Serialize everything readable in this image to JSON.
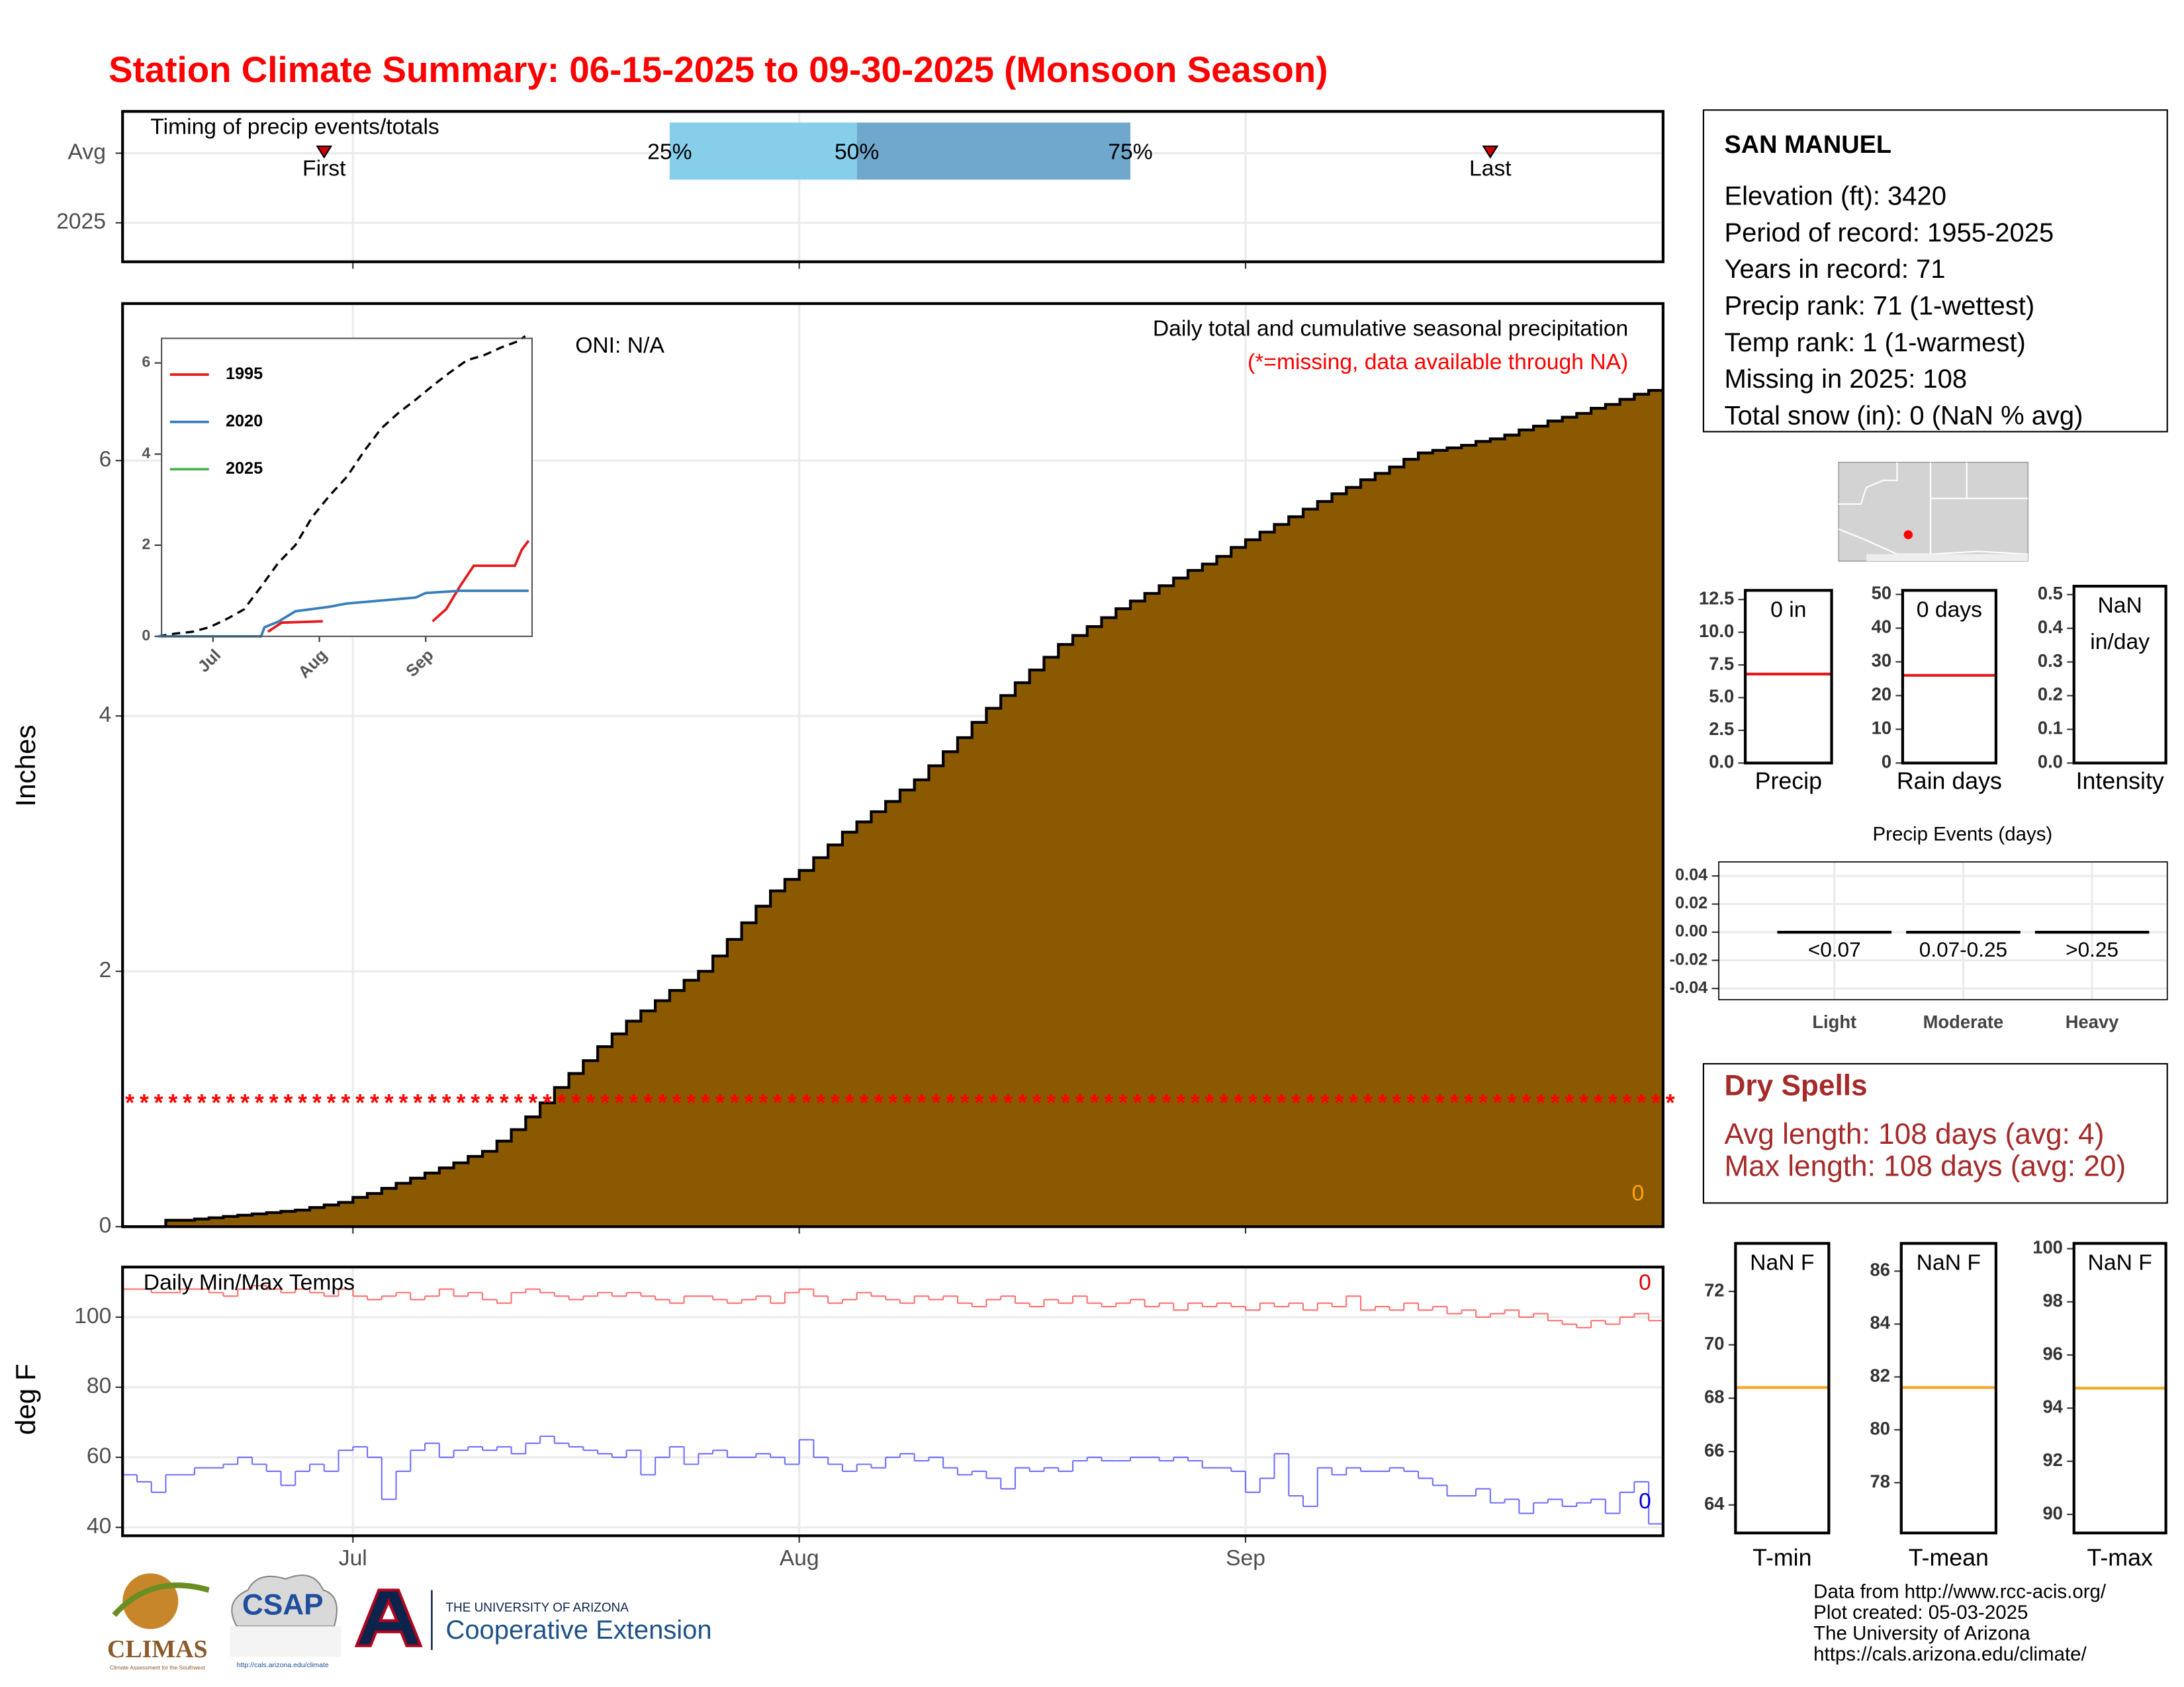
{
  "title": "Station Climate Summary: 06-15-2025 to 09-30-2025 (Monsoon Season)",
  "station": {
    "name": "SAN MANUEL",
    "lines": [
      "Elevation (ft): 3420",
      "Period of record: 1955-2025",
      "Years in record: 71",
      "Precip rank: 71 (1-wettest)",
      "Temp rank: 1 (1-warmest)",
      "Missing in 2025: 108",
      "Total snow (in): 0 (NaN % avg)"
    ]
  },
  "dry_spells": {
    "title": "Dry Spells",
    "lines": [
      "Avg length: 108 days (avg: 4)",
      "Max length: 108 days (avg: 20)"
    ]
  },
  "footer": [
    "Data from http://www.rcc-acis.org/",
    "Plot created: 05-03-2025",
    "The University of Arizona",
    "https://cals.arizona.edu/climate/"
  ],
  "logos": {
    "climas": "CLIMAS",
    "climas_sub": "Climate Assessment for the Southwest",
    "csap": "CSAP",
    "csap_url": "http://cals.arizona.edu/climate",
    "ua": "THE UNIVERSITY OF ARIZONA",
    "extension": "Cooperative Extension"
  },
  "chart_data": [
    {
      "type": "timing",
      "title": "Timing of precip events/totals",
      "categories": [
        "Avg",
        "2025"
      ],
      "quantiles": [
        {
          "label": "25%",
          "x": 38
        },
        {
          "label": "50%",
          "x": 51
        },
        {
          "label": "75%",
          "x": 70
        }
      ],
      "bar_colors": [
        "#87ceeb",
        "#6fa8cc"
      ],
      "markers": [
        {
          "label": "First",
          "x": 14
        },
        {
          "label": "Last",
          "x": 95
        }
      ],
      "marker_color": "#cc0000"
    },
    {
      "type": "step",
      "subtitle": "Daily total and cumulative seasonal precipitation",
      "note": "(*=missing, data available through NA)",
      "oni_label": "ONI: N/A",
      "total_label": "0",
      "ylabel": "Inches",
      "color": "#8b5a00",
      "missing_marker": "*",
      "missing_marker_y": 1,
      "missing_color": "#ff0000",
      "values": [
        0,
        0,
        0,
        0.05,
        0.05,
        0.06,
        0.07,
        0.08,
        0.09,
        0.1,
        0.11,
        0.12,
        0.13,
        0.15,
        0.17,
        0.19,
        0.23,
        0.26,
        0.3,
        0.34,
        0.38,
        0.42,
        0.46,
        0.5,
        0.55,
        0.59,
        0.67,
        0.76,
        0.86,
        0.97,
        1.09,
        1.2,
        1.3,
        1.41,
        1.51,
        1.61,
        1.69,
        1.77,
        1.85,
        1.93,
        2.0,
        2.12,
        2.25,
        2.38,
        2.51,
        2.63,
        2.72,
        2.79,
        2.89,
        2.99,
        3.09,
        3.17,
        3.25,
        3.33,
        3.42,
        3.5,
        3.61,
        3.72,
        3.83,
        3.95,
        4.06,
        4.16,
        4.26,
        4.36,
        4.46,
        4.56,
        4.63,
        4.7,
        4.77,
        4.84,
        4.9,
        4.96,
        5.02,
        5.08,
        5.14,
        5.19,
        5.25,
        5.32,
        5.38,
        5.44,
        5.5,
        5.56,
        5.62,
        5.68,
        5.74,
        5.79,
        5.85,
        5.9,
        5.95,
        6.01,
        6.06,
        6.08,
        6.1,
        6.12,
        6.15,
        6.17,
        6.2,
        6.24,
        6.27,
        6.31,
        6.34,
        6.37,
        6.41,
        6.44,
        6.48,
        6.52,
        6.55,
        6.59
      ],
      "ylim": [
        0,
        7.23
      ],
      "yticks": [
        0,
        2,
        4,
        6
      ],
      "grid": true
    },
    {
      "type": "line",
      "xlim": [
        1,
        109
      ],
      "xticks": [
        {
          "value": 16,
          "label": "Jul"
        },
        {
          "value": 47,
          "label": "Aug"
        },
        {
          "value": 78,
          "label": "Sep"
        }
      ],
      "ylim": [
        0,
        6.54
      ],
      "yticks": [
        0,
        2,
        4,
        6
      ],
      "series": [
        {
          "color": "#000000",
          "dash": true,
          "x": [
            0,
            5,
            10,
            15,
            20,
            25,
            30,
            35,
            40,
            45,
            50,
            55,
            60,
            65,
            70,
            75,
            80,
            85,
            90,
            95,
            100,
            105,
            107
          ],
          "values": [
            0,
            0.06,
            0.1,
            0.2,
            0.38,
            0.59,
            1.09,
            1.61,
            2.0,
            2.63,
            3.09,
            3.5,
            4.06,
            4.56,
            4.9,
            5.19,
            5.5,
            5.79,
            6.06,
            6.17,
            6.34,
            6.48,
            6.59
          ]
        },
        {
          "name": "1995",
          "color": "#e41a1c",
          "x": [
            32,
            36,
            48,
            60,
            80,
            84,
            88,
            92,
            104,
            106,
            108
          ],
          "values": [
            0.1,
            0.3,
            0.33,
            null,
            0.33,
            0.6,
            1.1,
            1.55,
            1.55,
            1.9,
            2.1
          ]
        },
        {
          "name": "2020",
          "color": "#377eb8",
          "x": [
            0,
            30,
            31,
            35,
            40,
            50,
            55,
            75,
            78,
            88,
            108
          ],
          "values": [
            0,
            0,
            0.2,
            0.32,
            0.55,
            0.65,
            0.72,
            0.85,
            0.95,
            1.0,
            1.0
          ]
        },
        {
          "name": "2025",
          "color": "#4daf4a",
          "x": [],
          "values": []
        }
      ]
    },
    {
      "type": "step-line",
      "title": "Daily Min/Max Temps",
      "ylabel": "deg F",
      "xlim": [
        0,
        107
      ],
      "xticks": [
        {
          "value": 16,
          "label": "Jul"
        },
        {
          "value": 47,
          "label": "Aug"
        },
        {
          "value": 78,
          "label": "Sep"
        }
      ],
      "ylim": [
        37.6,
        114.3
      ],
      "yticks": [
        40,
        60,
        80,
        100
      ],
      "grid": true,
      "series": [
        {
          "color": "#ff7070",
          "end_label": "0",
          "label_color": "#e00000",
          "values": [
            108,
            108,
            107,
            107,
            108,
            108,
            107,
            106,
            108,
            109,
            108,
            107,
            108,
            107,
            106,
            108,
            106,
            105,
            106,
            107,
            105,
            106,
            108,
            106,
            107,
            105,
            104,
            107,
            108,
            107,
            106,
            105,
            106,
            107,
            106,
            107,
            106,
            105,
            104,
            106,
            106,
            105,
            104,
            105,
            106,
            104,
            107,
            108,
            106,
            104,
            105,
            107,
            106,
            105,
            104,
            106,
            105,
            106,
            104,
            103,
            105,
            106,
            104,
            103,
            105,
            104,
            106,
            104,
            103,
            104,
            105,
            103,
            104,
            102,
            104,
            103,
            104,
            103,
            102,
            104,
            103,
            104,
            102,
            104,
            103,
            106,
            102,
            103,
            102,
            104,
            102,
            103,
            101,
            102,
            100,
            101,
            102,
            100,
            101,
            99,
            98,
            97,
            99,
            98,
            100,
            101,
            99,
            97
          ]
        },
        {
          "color": "#7070ff",
          "end_label": "0",
          "label_color": "#0000dd",
          "values": [
            55,
            53,
            50,
            55,
            55,
            57,
            57,
            58,
            60,
            58,
            56,
            52,
            56,
            58,
            56,
            62,
            63,
            60,
            48,
            56,
            62,
            64,
            60,
            62,
            63,
            62,
            63,
            61,
            64,
            66,
            64,
            63,
            62,
            61,
            60,
            62,
            55,
            60,
            63,
            58,
            61,
            62,
            60,
            60,
            61,
            60,
            58,
            65,
            60,
            58,
            56,
            58,
            57,
            60,
            61,
            59,
            60,
            57,
            55,
            56,
            54,
            51,
            57,
            56,
            57,
            56,
            59,
            60,
            59,
            59,
            60,
            60,
            59,
            60,
            59,
            57,
            57,
            56,
            50,
            54,
            61,
            49,
            46,
            57,
            55,
            57,
            56,
            56,
            57,
            56,
            54,
            52,
            49,
            49,
            51,
            47,
            48,
            44,
            47,
            48,
            46,
            47,
            48,
            44,
            50,
            53,
            41,
            43
          ]
        }
      ]
    },
    {
      "type": "stat-bar",
      "xlabel": "Precip",
      "values": [
        0
      ],
      "value_labels": [
        "0 in"
      ],
      "average": 6.8,
      "average_color": "#e41a1c",
      "ylim": [
        0,
        13.2
      ],
      "yticks": [
        {
          "value": 0,
          "label": "0.0"
        },
        2.5,
        {
          "value": 5,
          "label": "5.0"
        },
        7.5,
        {
          "value": 10,
          "label": "10.0"
        },
        12.5
      ]
    },
    {
      "type": "stat-bar",
      "xlabel": "Rain days",
      "values": [
        0
      ],
      "value_labels": [
        "0 days"
      ],
      "average": 26,
      "average_color": "#e41a1c",
      "ylim": [
        0,
        51.2
      ],
      "yticks": [
        0,
        10,
        20,
        30,
        40,
        50
      ]
    },
    {
      "type": "stat-bar",
      "xlabel": "Intensity",
      "values": [
        null
      ],
      "value_labels": [
        "NaN in/day"
      ],
      "ylim": [
        0,
        0.525
      ],
      "yticks": [
        {
          "value": 0,
          "label": "0.0"
        },
        0.1,
        0.2,
        0.3,
        0.4,
        0.5
      ]
    },
    {
      "type": "bar",
      "title": "Precip Events (days)",
      "categories": [
        "Light",
        "Moderate",
        "Heavy"
      ],
      "bin_labels": [
        "<0.07",
        "0.07-0.25",
        ">0.25"
      ],
      "values": [
        0,
        0,
        0
      ],
      "ylim": [
        -0.048,
        0.05
      ],
      "yticks": [
        0.04,
        0.02,
        {
          "value": 0,
          "label": "0.00"
        },
        -0.02,
        -0.04
      ],
      "grid": true
    },
    {
      "type": "stat-bar",
      "xlabel": "T-min",
      "values": [
        null
      ],
      "value_labels": [
        "NaN F"
      ],
      "average": 68.4,
      "average_color": "#f5a623",
      "ylim": [
        62.95,
        73.8
      ],
      "yticks": [
        64,
        66,
        68,
        70,
        72
      ]
    },
    {
      "type": "stat-bar",
      "xlabel": "T-mean",
      "values": [
        null
      ],
      "value_labels": [
        "NaN F"
      ],
      "average": 81.6,
      "average_color": "#f5a623",
      "ylim": [
        76.1,
        87.05
      ],
      "yticks": [
        78,
        80,
        82,
        84,
        86
      ]
    },
    {
      "type": "stat-bar",
      "xlabel": "T-max",
      "values": [
        null
      ],
      "value_labels": [
        "NaN F"
      ],
      "average": 94.75,
      "average_color": "#f5a623",
      "ylim": [
        89.3,
        100.2
      ],
      "yticks": [
        90,
        92,
        94,
        96,
        98,
        100
      ]
    }
  ]
}
